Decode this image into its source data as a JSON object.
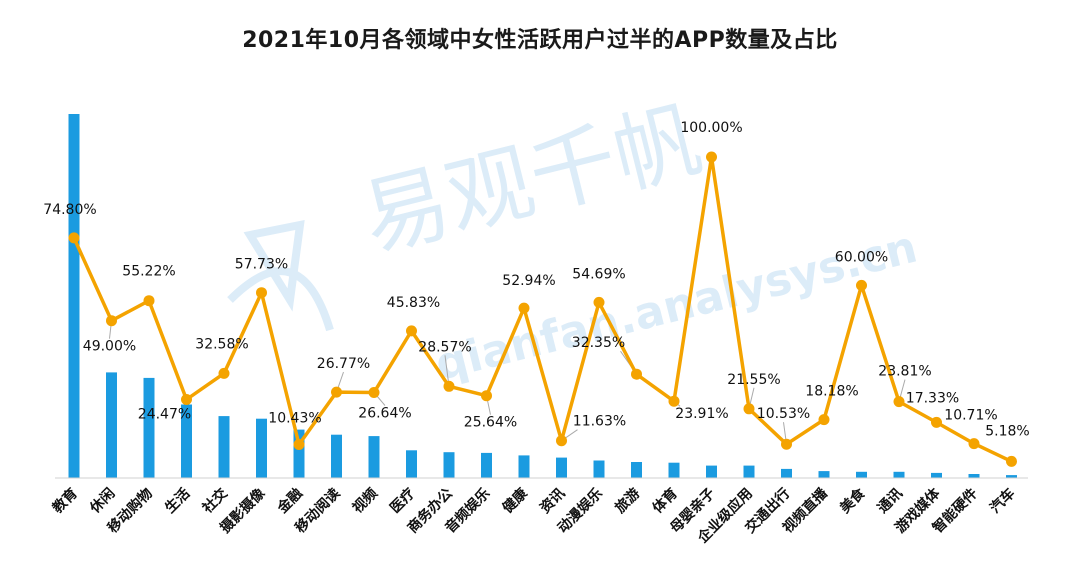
{
  "chart_data": {
    "type": "bar",
    "title": "2021年10月各领域中女性活跃用户过半的APP数量及占比",
    "categories": [
      "教育",
      "休闲",
      "移动购物",
      "生活",
      "社交",
      "摄影摄像",
      "金融",
      "移动阅读",
      "视频",
      "医疗",
      "商务办公",
      "音频娱乐",
      "健康",
      "资讯",
      "动漫娱乐",
      "旅游",
      "体育",
      "母婴亲子",
      "企业级应用",
      "交通出行",
      "视频直播",
      "美食",
      "通讯",
      "游戏媒体",
      "智能硬件",
      "汽车"
    ],
    "series": [
      {
        "type": "bar",
        "values": [
          100,
          29,
          27.5,
          20.2,
          17.0,
          16.3,
          13.3,
          11.9,
          11.5,
          7.6,
          7.1,
          6.9,
          6.2,
          5.6,
          4.8,
          4.4,
          4.2,
          3.4,
          3.4,
          2.5,
          1.9,
          1.7,
          1.7,
          1.4,
          1.1,
          0.8
        ],
        "color": "#1b9be0"
      },
      {
        "type": "line",
        "values": [
          74.8,
          49.0,
          55.22,
          24.47,
          32.58,
          57.73,
          10.43,
          26.77,
          26.64,
          45.83,
          28.57,
          25.64,
          52.94,
          11.63,
          54.69,
          32.35,
          23.91,
          100.0,
          21.55,
          10.53,
          18.18,
          60.0,
          23.81,
          17.33,
          10.71,
          5.18
        ],
        "labels": [
          "74.80%",
          "49.00%",
          "55.22%",
          "24.47%",
          "32.58%",
          "57.73%",
          "10.43%",
          "26.77%",
          "26.64%",
          "45.83%",
          "28.57%",
          "25.64%",
          "52.94%",
          "11.63%",
          "54.69%",
          "32.35%",
          "23.91%",
          "100.00%",
          "21.55%",
          "10.53%",
          "18.18%",
          "60.00%",
          "23.81%",
          "17.33%",
          "10.71%",
          "5.18%"
        ],
        "color": "#f4a300"
      }
    ],
    "xlabel": "",
    "ylabel": "",
    "ylim": [
      0,
      100
    ],
    "grid": false,
    "legend": "none"
  },
  "watermark": {
    "brand": "易观千帆",
    "domain": "qianfan.analysys.cn"
  }
}
